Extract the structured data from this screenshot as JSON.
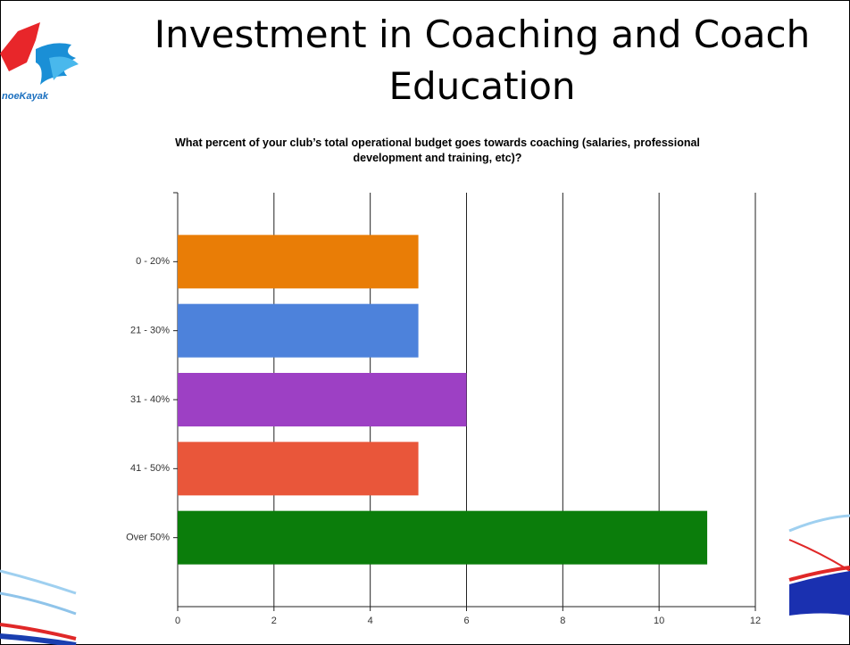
{
  "slide_title": "Investment in Coaching and Coach Education",
  "logo_text": "noeKayak",
  "chart_data": {
    "type": "bar",
    "orientation": "horizontal",
    "title": "What percent of your club’s total operational budget goes towards coaching (salaries, professional development and training, etc)?",
    "categories": [
      "0 - 20%",
      "21 - 30%",
      "31 - 40%",
      "41 - 50%",
      "Over 50%"
    ],
    "values": [
      5,
      5,
      6,
      5,
      11
    ],
    "colors": [
      "#e97d06",
      "#4d82db",
      "#9d40c4",
      "#e9563a",
      "#0b7d0b"
    ],
    "xlim": [
      0,
      12
    ],
    "xticks": [
      0,
      2,
      4,
      6,
      8,
      10,
      12
    ],
    "grid": true
  }
}
